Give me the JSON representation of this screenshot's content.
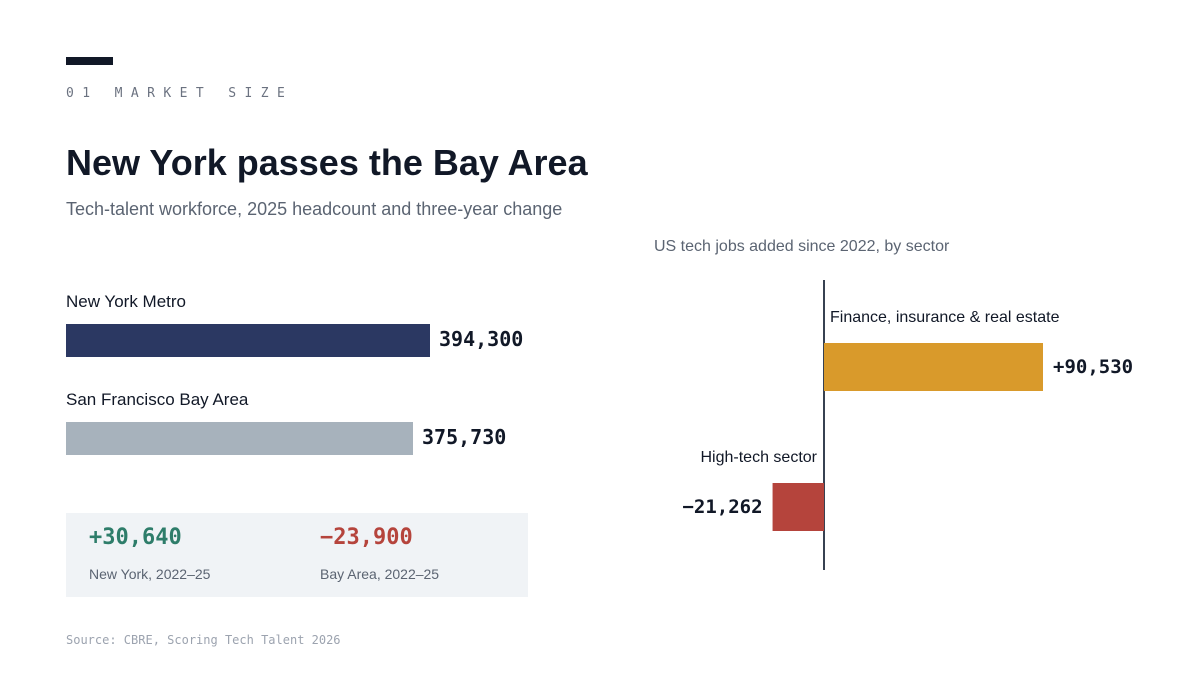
{
  "header": {
    "kicker": "01 MARKET SIZE",
    "title": "New York passes the Bay Area",
    "subtitle": "Tech-talent workforce, 2025 headcount and three-year change"
  },
  "headcount": {
    "items": [
      {
        "label": "New York Metro",
        "value": 394300,
        "value_label": "394,300",
        "color": "#2b3862"
      },
      {
        "label": "San Francisco Bay Area",
        "value": 375730,
        "value_label": "375,730",
        "color": "#a7b2bc"
      }
    ]
  },
  "change": {
    "items": [
      {
        "value_label": "+30,640",
        "caption": "New York, 2022–25",
        "color": "#2e7d6a"
      },
      {
        "value_label": "−23,900",
        "caption": "Bay Area, 2022–25",
        "color": "#b5443c"
      }
    ]
  },
  "source": "Source: CBRE, Scoring Tech Talent 2026",
  "colors": {
    "text": "#111827",
    "muted": "#5b6472",
    "axis": "#374151",
    "positive": "#d99a2b",
    "negative": "#b5443c"
  },
  "chart_data": [
    {
      "type": "bar",
      "orientation": "horizontal",
      "title": "",
      "categories": [
        "New York Metro",
        "San Francisco Bay Area"
      ],
      "values": [
        394300,
        375730
      ],
      "value_labels": [
        "394,300",
        "375,730"
      ]
    },
    {
      "type": "bar",
      "orientation": "horizontal",
      "title": "US tech jobs added since 2022, by sector",
      "categories": [
        "Finance, insurance & real estate",
        "High-tech sector"
      ],
      "values": [
        90530,
        -21262
      ],
      "value_labels": [
        "+90,530",
        "−21,262"
      ],
      "colors": [
        "#d99a2b",
        "#b5443c"
      ]
    }
  ]
}
